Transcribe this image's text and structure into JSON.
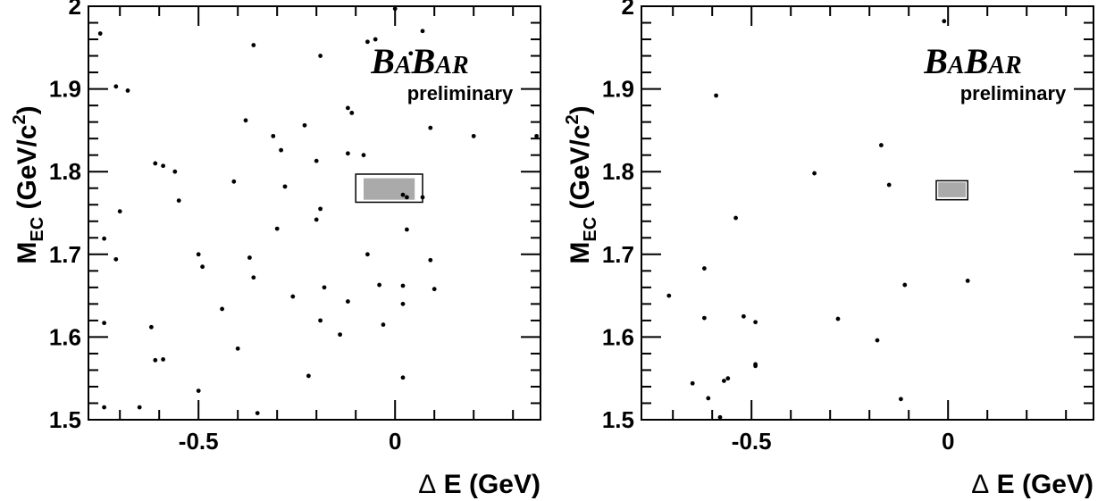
{
  "chart_data": [
    {
      "type": "scatter",
      "xlabel": "Δ E (GeV)",
      "ylabel": "M_EC (GeV/c^2)",
      "ylabel_main": "M",
      "ylabel_sub": "EC",
      "ylabel_rest": " (GeV/c",
      "ylabel_sup": "2",
      "ylabel_close": ")",
      "xlabel_delta": "Δ",
      "xlabel_rest": " E (GeV)",
      "xlim": [
        -0.78,
        0.37
      ],
      "ylim": [
        1.5,
        2.0
      ],
      "x_tick_labels": [
        "-0.5",
        "0"
      ],
      "x_tick_values": [
        -0.5,
        0
      ],
      "y_tick_labels": [
        "1.5",
        "1.6",
        "1.7",
        "1.8",
        "1.9",
        "2"
      ],
      "y_tick_values": [
        1.5,
        1.6,
        1.7,
        1.8,
        1.9,
        2.0
      ],
      "logo": "BABAR",
      "logo_parts": [
        "B",
        "A",
        "B",
        "AR"
      ],
      "annotation": "preliminary",
      "signal_box": {
        "x_min": -0.1,
        "x_max": 0.07,
        "y_min": 1.763,
        "y_max": 1.797
      },
      "signal_region_fill": {
        "x_min": -0.08,
        "x_max": 0.05,
        "y_min": 1.766,
        "y_max": 1.792,
        "color": "#aaaaaa"
      },
      "points": [
        {
          "x": -0.75,
          "y": 1.967
        },
        {
          "x": -0.71,
          "y": 1.903
        },
        {
          "x": -0.68,
          "y": 1.898
        },
        {
          "x": -0.36,
          "y": 1.953
        },
        {
          "x": -0.19,
          "y": 1.94
        },
        {
          "x": -0.07,
          "y": 1.957
        },
        {
          "x": -0.05,
          "y": 1.96
        },
        {
          "x": 0.0,
          "y": 1.997
        },
        {
          "x": 0.04,
          "y": 1.943
        },
        {
          "x": 0.07,
          "y": 1.97
        },
        {
          "x": -0.38,
          "y": 1.862
        },
        {
          "x": -0.31,
          "y": 1.843
        },
        {
          "x": -0.29,
          "y": 1.826
        },
        {
          "x": -0.23,
          "y": 1.856
        },
        {
          "x": -0.12,
          "y": 1.877
        },
        {
          "x": -0.11,
          "y": 1.871
        },
        {
          "x": -0.12,
          "y": 1.822
        },
        {
          "x": -0.08,
          "y": 1.82
        },
        {
          "x": 0.09,
          "y": 1.853
        },
        {
          "x": 0.2,
          "y": 1.843
        },
        {
          "x": 0.36,
          "y": 1.843
        },
        {
          "x": -0.2,
          "y": 1.813
        },
        {
          "x": -0.61,
          "y": 1.81
        },
        {
          "x": -0.59,
          "y": 1.807
        },
        {
          "x": -0.56,
          "y": 1.8
        },
        {
          "x": -0.41,
          "y": 1.788
        },
        {
          "x": -0.28,
          "y": 1.782
        },
        {
          "x": -0.55,
          "y": 1.765
        },
        {
          "x": -0.19,
          "y": 1.755
        },
        {
          "x": -0.2,
          "y": 1.742
        },
        {
          "x": 0.02,
          "y": 1.772
        },
        {
          "x": 0.03,
          "y": 1.769
        },
        {
          "x": 0.07,
          "y": 1.769
        },
        {
          "x": -0.7,
          "y": 1.752
        },
        {
          "x": -0.3,
          "y": 1.731
        },
        {
          "x": 0.03,
          "y": 1.73
        },
        {
          "x": -0.74,
          "y": 1.719
        },
        {
          "x": -0.71,
          "y": 1.694
        },
        {
          "x": -0.5,
          "y": 1.7
        },
        {
          "x": -0.49,
          "y": 1.685
        },
        {
          "x": -0.37,
          "y": 1.696
        },
        {
          "x": -0.36,
          "y": 1.672
        },
        {
          "x": -0.07,
          "y": 1.7
        },
        {
          "x": 0.09,
          "y": 1.693
        },
        {
          "x": -0.18,
          "y": 1.66
        },
        {
          "x": -0.26,
          "y": 1.649
        },
        {
          "x": -0.12,
          "y": 1.643
        },
        {
          "x": -0.04,
          "y": 1.663
        },
        {
          "x": 0.02,
          "y": 1.662
        },
        {
          "x": 0.1,
          "y": 1.658
        },
        {
          "x": 0.02,
          "y": 1.64
        },
        {
          "x": -0.44,
          "y": 1.634
        },
        {
          "x": -0.74,
          "y": 1.617
        },
        {
          "x": -0.62,
          "y": 1.612
        },
        {
          "x": -0.19,
          "y": 1.62
        },
        {
          "x": -0.03,
          "y": 1.615
        },
        {
          "x": -0.14,
          "y": 1.603
        },
        {
          "x": -0.4,
          "y": 1.586
        },
        {
          "x": -0.61,
          "y": 1.572
        },
        {
          "x": -0.59,
          "y": 1.573
        },
        {
          "x": -0.22,
          "y": 1.553
        },
        {
          "x": 0.02,
          "y": 1.551
        },
        {
          "x": -0.5,
          "y": 1.535
        },
        {
          "x": -0.74,
          "y": 1.515
        },
        {
          "x": -0.65,
          "y": 1.515
        },
        {
          "x": -0.35,
          "y": 1.508
        }
      ]
    },
    {
      "type": "scatter",
      "xlabel": "Δ E (GeV)",
      "ylabel": "M_EC (GeV/c^2)",
      "ylabel_main": "M",
      "ylabel_sub": "EC",
      "ylabel_rest": " (GeV/c",
      "ylabel_sup": "2",
      "ylabel_close": ")",
      "xlabel_delta": "Δ",
      "xlabel_rest": " E (GeV)",
      "xlim": [
        -0.78,
        0.37
      ],
      "ylim": [
        1.5,
        2.0
      ],
      "x_tick_labels": [
        "-0.5",
        "0"
      ],
      "x_tick_values": [
        -0.5,
        0
      ],
      "y_tick_labels": [
        "1.5",
        "1.6",
        "1.7",
        "1.8",
        "1.9",
        "2"
      ],
      "y_tick_values": [
        1.5,
        1.6,
        1.7,
        1.8,
        1.9,
        2.0
      ],
      "logo": "BABAR",
      "logo_parts": [
        "B",
        "A",
        "B",
        "AR"
      ],
      "annotation": "preliminary",
      "signal_box": {
        "x_min": -0.03,
        "x_max": 0.05,
        "y_min": 1.766,
        "y_max": 1.789
      },
      "signal_region_fill": {
        "x_min": -0.025,
        "x_max": 0.045,
        "y_min": 1.769,
        "y_max": 1.787,
        "color": "#aaaaaa"
      },
      "points": [
        {
          "x": -0.01,
          "y": 1.982
        },
        {
          "x": -0.59,
          "y": 1.892
        },
        {
          "x": -0.17,
          "y": 1.832
        },
        {
          "x": -0.34,
          "y": 1.798
        },
        {
          "x": -0.15,
          "y": 1.784
        },
        {
          "x": -0.54,
          "y": 1.744
        },
        {
          "x": -0.62,
          "y": 1.683
        },
        {
          "x": -0.71,
          "y": 1.65
        },
        {
          "x": -0.11,
          "y": 1.663
        },
        {
          "x": 0.05,
          "y": 1.668
        },
        {
          "x": -0.62,
          "y": 1.623
        },
        {
          "x": -0.52,
          "y": 1.625
        },
        {
          "x": -0.49,
          "y": 1.618
        },
        {
          "x": -0.28,
          "y": 1.622
        },
        {
          "x": -0.18,
          "y": 1.596
        },
        {
          "x": -0.49,
          "y": 1.567
        },
        {
          "x": -0.49,
          "y": 1.565
        },
        {
          "x": -0.65,
          "y": 1.544
        },
        {
          "x": -0.57,
          "y": 1.547
        },
        {
          "x": -0.56,
          "y": 1.55
        },
        {
          "x": -0.61,
          "y": 1.526
        },
        {
          "x": -0.12,
          "y": 1.525
        },
        {
          "x": -0.58,
          "y": 1.503
        }
      ]
    }
  ]
}
